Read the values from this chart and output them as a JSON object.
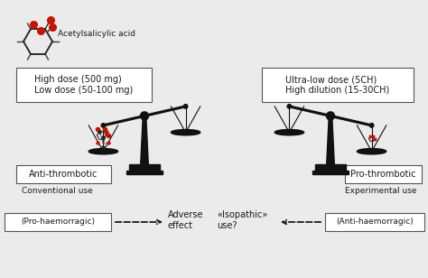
{
  "bg_color": "#ebebeb",
  "molecule_label": "Acetylsalicylic acid",
  "left_box_text": "High dose (500 mg)\nLow dose (50-100 mg)",
  "right_box_text": "Ultra-low dose (5CH)\nHigh dilution (15-30CH)",
  "left_effect_box": "Anti-thrombotic",
  "left_sub": "Conventional use",
  "right_effect_box": "Pro-thrombotic",
  "right_sub": "Experimental use",
  "bottom_left_box": "(Pro-haemorragic)",
  "bottom_center_left": "Adverse\neffect",
  "bottom_center_right": "«Isopathic»\nuse?",
  "bottom_right_box": "(Anti-haemorragic)",
  "text_color": "#1a1a1a",
  "box_facecolor": "#ffffff",
  "box_edgecolor": "#555555",
  "scale_color": "#111111",
  "mol_color_ring": "#333333",
  "mol_color_red": "#cc2200",
  "mol_color_gray": "#666666"
}
